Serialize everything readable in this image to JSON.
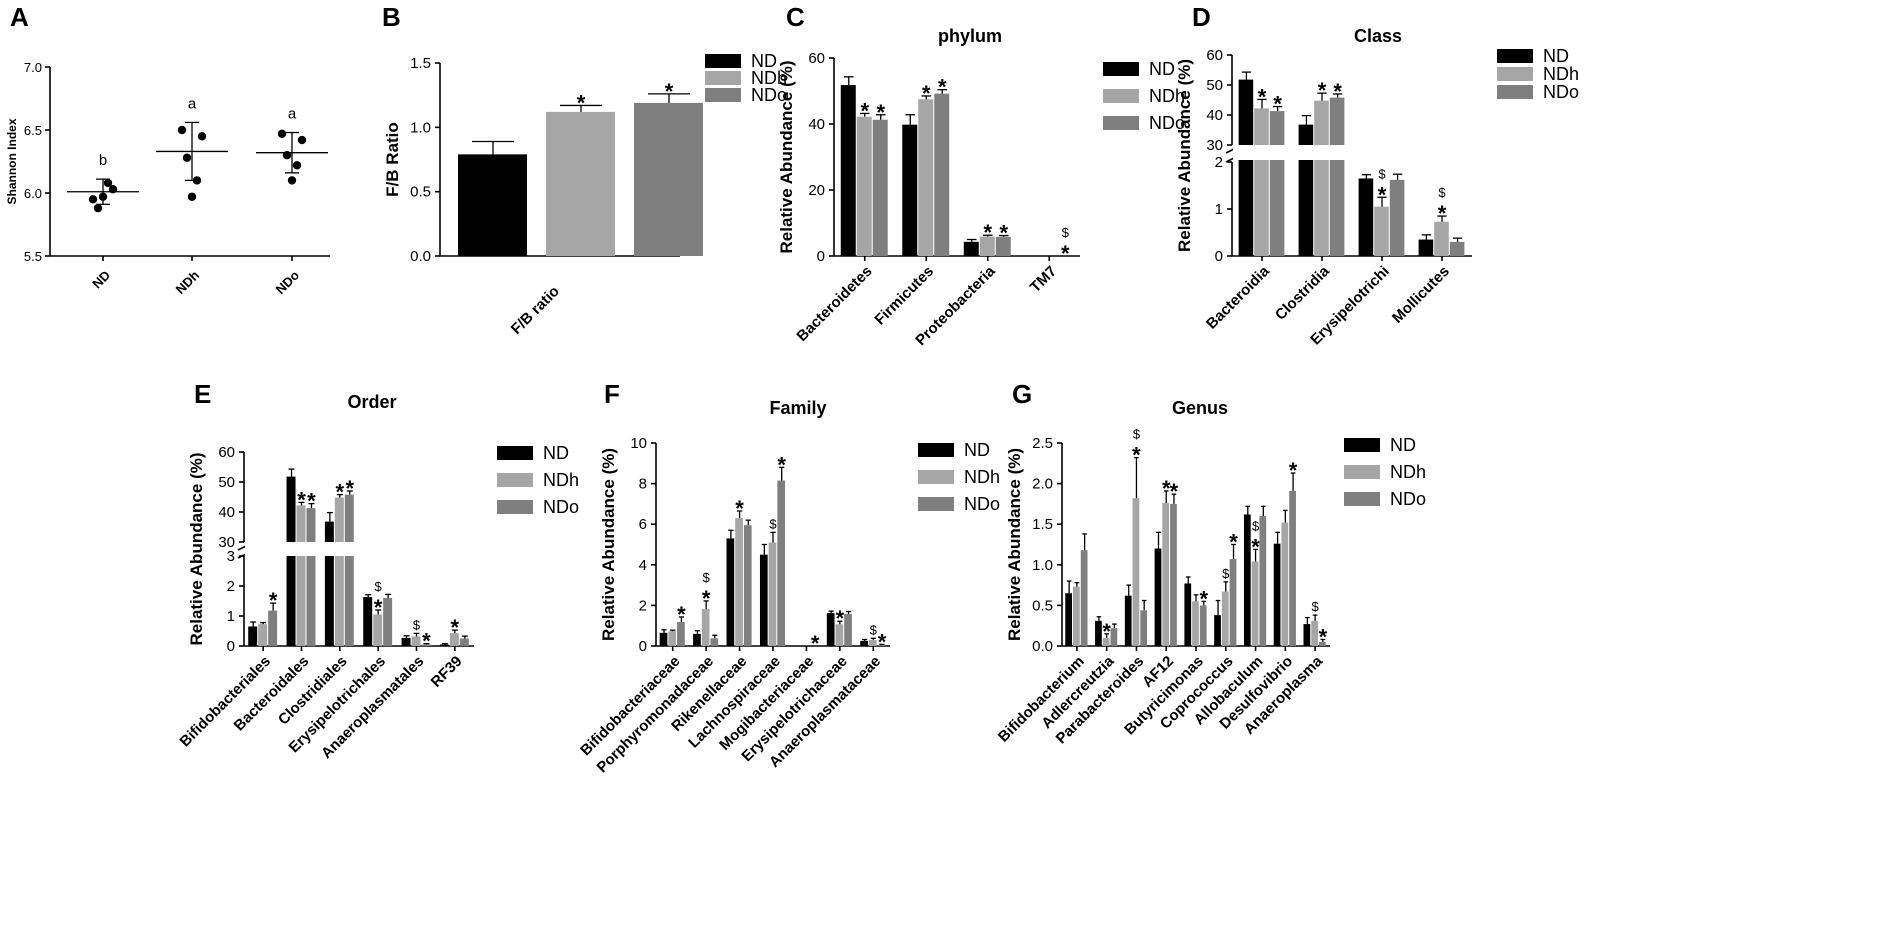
{
  "colors": {
    "ND": "#000000",
    "NDh": "#a6a6a6",
    "NDo": "#7f7f7f",
    "axis": "#000000"
  },
  "legend": [
    "ND",
    "NDh",
    "NDo"
  ],
  "chart_data": [
    {
      "id": "A",
      "letter": "A",
      "type": "scatter",
      "title": "",
      "ylabel": "Shannon Index",
      "xlabel": "",
      "ylim": [
        5.5,
        7.0
      ],
      "yticks": [
        "5.5",
        "6.0",
        "6.5",
        "7.0"
      ],
      "groups": [
        {
          "name": "ND",
          "mean": 6.01,
          "sd": 0.1,
          "letter": "b",
          "points": [
            5.95,
            6.03,
            5.88,
            6.08,
            5.97
          ]
        },
        {
          "name": "NDh",
          "mean": 6.33,
          "sd": 0.23,
          "letter": "a",
          "points": [
            6.5,
            6.45,
            6.28,
            6.1,
            5.97
          ]
        },
        {
          "name": "NDo",
          "mean": 6.32,
          "sd": 0.16,
          "letter": "a",
          "points": [
            6.47,
            6.42,
            6.3,
            6.22,
            6.1
          ]
        }
      ]
    },
    {
      "id": "B",
      "letter": "B",
      "type": "bar",
      "title": "",
      "ylabel": "F/B Ratio",
      "xlabel": "",
      "ylim": [
        0,
        1.5
      ],
      "yticks": [
        "0.0",
        "0.5",
        "1.0",
        "1.5"
      ],
      "categories": [
        "F/B ratio"
      ],
      "series": [
        {
          "name": "ND",
          "values": [
            0.79
          ],
          "errors": [
            0.1
          ],
          "marks": [
            ""
          ]
        },
        {
          "name": "NDh",
          "values": [
            1.12
          ],
          "errors": [
            0.05
          ],
          "marks": [
            "*"
          ]
        },
        {
          "name": "NDo",
          "values": [
            1.19
          ],
          "errors": [
            0.07
          ],
          "marks": [
            "*"
          ]
        }
      ]
    },
    {
      "id": "C",
      "letter": "C",
      "type": "bar",
      "title": "phylum",
      "ylabel": "Relative Abundance (%)",
      "ylim": [
        0,
        60
      ],
      "yticks": [
        "0",
        "20",
        "40",
        "60"
      ],
      "categories": [
        "Bacteroidetes",
        "Firmicutes",
        "Proteobacteria",
        "TM7"
      ],
      "series": [
        {
          "name": "ND",
          "values": [
            51.8,
            39.8,
            4.3,
            0
          ],
          "errors": [
            2.5,
            3,
            0.7,
            0
          ],
          "marks": [
            "",
            "",
            "",
            ""
          ]
        },
        {
          "name": "NDh",
          "values": [
            42.2,
            47.5,
            5.9,
            0
          ],
          "errors": [
            1,
            1,
            0.4,
            0
          ],
          "marks": [
            "*",
            "*",
            "*",
            ""
          ]
        },
        {
          "name": "NDo",
          "values": [
            41.3,
            49.2,
            5.8,
            0
          ],
          "errors": [
            1.5,
            1.2,
            0.4,
            0
          ],
          "marks": [
            "*",
            "*",
            "*",
            "$\n*"
          ]
        }
      ]
    },
    {
      "id": "D",
      "letter": "D",
      "type": "bar",
      "title": "Class",
      "ylabel": "Relative Abundance (%)",
      "break": true,
      "ylim_lower": [
        0,
        2
      ],
      "ylim_upper": [
        30,
        60
      ],
      "yticks_lower": [
        "0",
        "1",
        "2"
      ],
      "yticks_upper": [
        "30",
        "40",
        "50",
        "60"
      ],
      "categories": [
        "Bacteroidia",
        "Clostridia",
        "Erysipelotrichi",
        "Mollicutes"
      ],
      "series": [
        {
          "name": "ND",
          "values": [
            51.8,
            36.8,
            1.65,
            0.35
          ],
          "errors": [
            2.5,
            3,
            0.08,
            0.1
          ],
          "marks": [
            "",
            "",
            "",
            ""
          ]
        },
        {
          "name": "NDh",
          "values": [
            42.2,
            44.8,
            1.05,
            0.73
          ],
          "errors": [
            3,
            2.5,
            0.2,
            0.12
          ],
          "marks": [
            "*",
            "*",
            "$\n*",
            "$\n*"
          ]
        },
        {
          "name": "NDo",
          "values": [
            41.3,
            45.8,
            1.62,
            0.3
          ],
          "errors": [
            1.5,
            1.2,
            0.12,
            0.08
          ],
          "marks": [
            "*",
            "*",
            "",
            ""
          ]
        }
      ]
    },
    {
      "id": "E",
      "letter": "E",
      "type": "bar",
      "title": "Order",
      "ylabel": "Relative Abundance (%)",
      "break": true,
      "ylim_lower": [
        0,
        3
      ],
      "ylim_upper": [
        30,
        60
      ],
      "yticks_lower": [
        "0",
        "1",
        "2",
        "3"
      ],
      "yticks_upper": [
        "30",
        "40",
        "50",
        "60"
      ],
      "categories": [
        "Bifidobacteriales",
        "Bacteroidales",
        "Clostridiales",
        "Erysipelotrichales",
        "Anaeroplasmatales",
        "RF39"
      ],
      "series": [
        {
          "name": "ND",
          "values": [
            0.65,
            51.8,
            36.8,
            1.63,
            0.27,
            0.05
          ],
          "errors": [
            0.15,
            2.5,
            3,
            0.08,
            0.07,
            0.03
          ],
          "marks": [
            "",
            "",
            "",
            "",
            "",
            ""
          ]
        },
        {
          "name": "NDh",
          "values": [
            0.73,
            42.2,
            44.8,
            1.05,
            0.32,
            0.43
          ],
          "errors": [
            0.05,
            1,
            1,
            0.15,
            0.1,
            0.1
          ],
          "marks": [
            "",
            "*",
            "*",
            "$\n*",
            "$",
            "*"
          ]
        },
        {
          "name": "NDo",
          "values": [
            1.18,
            41.3,
            45.8,
            1.6,
            0.05,
            0.25
          ],
          "errors": [
            0.25,
            1.5,
            1.2,
            0.12,
            0.03,
            0.08
          ],
          "marks": [
            "*",
            "*",
            "*",
            "",
            "*",
            ""
          ]
        }
      ]
    },
    {
      "id": "F",
      "letter": "F",
      "type": "bar",
      "title": "Family",
      "ylabel": "Relative Abundance (%)",
      "ylim": [
        0,
        10
      ],
      "yticks": [
        "0",
        "2",
        "4",
        "6",
        "8",
        "10"
      ],
      "categories": [
        "Bifidobacteriaceae",
        "Porphyromonadaceae",
        "Rikenellaceae",
        "Lachnospiraceae",
        "Mogibacteriaceae",
        "Erysipelotrichaceae",
        "Anaeroplasmataceae"
      ],
      "series": [
        {
          "name": "ND",
          "values": [
            0.65,
            0.6,
            5.3,
            4.5,
            0,
            1.62,
            0.25
          ],
          "errors": [
            0.15,
            0.15,
            0.4,
            0.5,
            0,
            0.1,
            0.07
          ],
          "marks": [
            "",
            "",
            "",
            "",
            "",
            "",
            ""
          ]
        },
        {
          "name": "NDh",
          "values": [
            0.73,
            1.82,
            6.3,
            5.1,
            0,
            1.07,
            0.3
          ],
          "errors": [
            0.05,
            0.4,
            0.35,
            0.5,
            0,
            0.15,
            0.08
          ],
          "marks": [
            "",
            "$\n*",
            "*",
            "$",
            "",
            "*",
            "$"
          ]
        },
        {
          "name": "NDo",
          "values": [
            1.18,
            0.38,
            5.95,
            8.15,
            0,
            1.58,
            0.05
          ],
          "errors": [
            0.25,
            0.15,
            0.25,
            0.65,
            0,
            0.12,
            0.03
          ],
          "marks": [
            "*",
            "",
            "",
            "*",
            "*",
            "",
            "*"
          ]
        }
      ]
    },
    {
      "id": "G",
      "letter": "G",
      "type": "bar",
      "title": "Genus",
      "ylabel": "Relative Abundance (%)",
      "ylim": [
        0,
        2.5
      ],
      "yticks": [
        "0.0",
        "0.5",
        "1.0",
        "1.5",
        "2.0",
        "2.5"
      ],
      "categories": [
        "Bifidobacterium",
        "Adlercreutzia",
        "Parabacteroides",
        "AF12",
        "Butyricimonas",
        "Coprococcus",
        "Allobaculum",
        "Desulfovibrio",
        "Anaeroplasma"
      ],
      "series": [
        {
          "name": "ND",
          "values": [
            0.65,
            0.31,
            0.62,
            1.2,
            0.77,
            0.38,
            1.62,
            1.26,
            0.27
          ],
          "errors": [
            0.15,
            0.05,
            0.13,
            0.2,
            0.08,
            0.18,
            0.1,
            0.14,
            0.08
          ],
          "marks": [
            "",
            "",
            "",
            "",
            "",
            "",
            "",
            "",
            ""
          ]
        },
        {
          "name": "NDh",
          "values": [
            0.73,
            0.1,
            1.82,
            1.76,
            0.55,
            0.67,
            1.04,
            1.52,
            0.31
          ],
          "errors": [
            0.05,
            0.05,
            0.5,
            0.15,
            0.08,
            0.12,
            0.15,
            0.15,
            0.07
          ],
          "marks": [
            "",
            "*",
            "$\n*",
            "*",
            "",
            "$",
            "$\n*",
            "",
            "$"
          ]
        },
        {
          "name": "NDo",
          "values": [
            1.18,
            0.22,
            0.44,
            1.75,
            0.5,
            1.07,
            1.6,
            1.91,
            0.05
          ],
          "errors": [
            0.2,
            0.05,
            0.12,
            0.12,
            0.05,
            0.18,
            0.12,
            0.22,
            0.03
          ],
          "marks": [
            "",
            "",
            "",
            "*",
            "*",
            "*",
            "",
            "*",
            "*"
          ]
        }
      ]
    }
  ]
}
